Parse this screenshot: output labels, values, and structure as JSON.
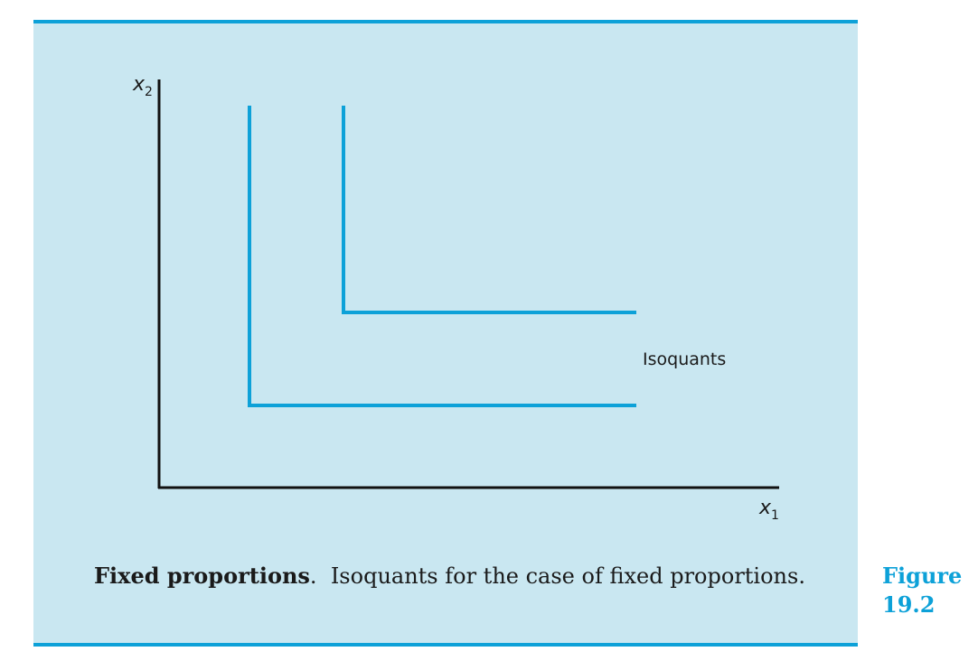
{
  "diagram": {
    "y_axis_label": "x",
    "y_axis_subscript": "2",
    "x_axis_label": "x",
    "x_axis_subscript": "1",
    "annotation": "Isoquants",
    "line_color": "#0da1d8",
    "panel_color": "#c9e7f1"
  },
  "caption": {
    "title": "Fixed proportions",
    "title_end": ".",
    "text": "Isoquants for the case of fixed proportions."
  },
  "figure": {
    "word": "Figure",
    "number": "19.2"
  }
}
